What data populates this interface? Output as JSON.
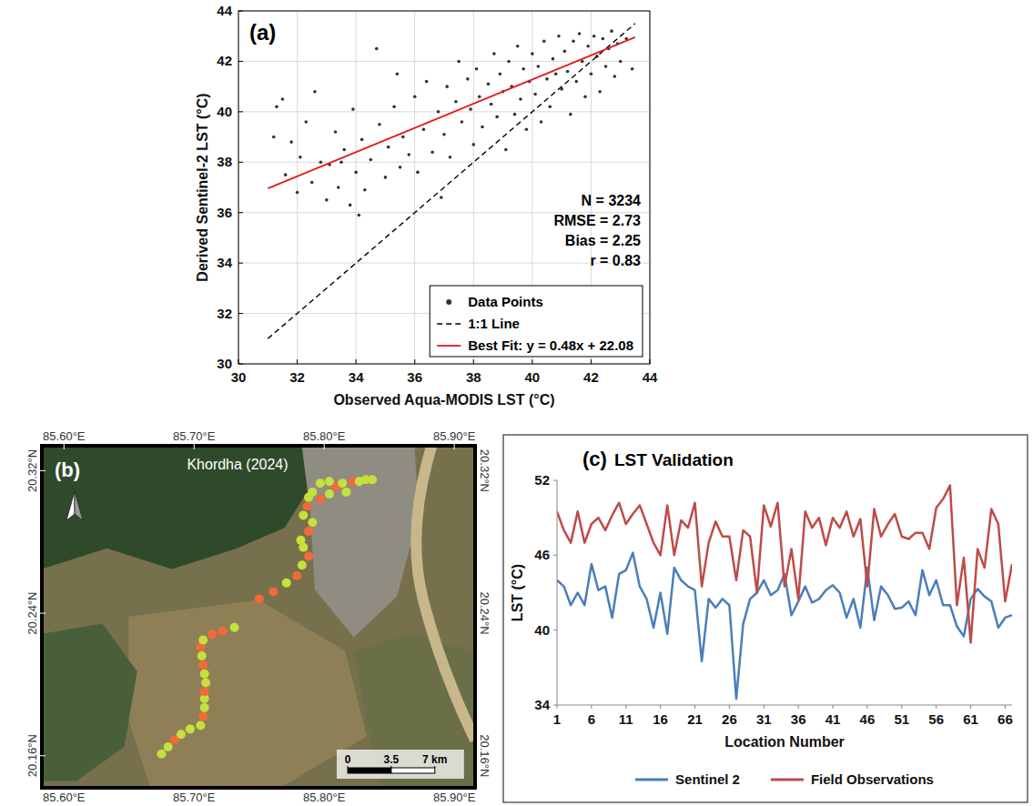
{
  "chart_data": [
    {
      "type": "scatter",
      "panel": "(a)",
      "x_label": "Observed Aqua-MODIS LST (°C)",
      "y_label": "Derived Sentinel-2 LST (°C)",
      "xlim": [
        30,
        44
      ],
      "ylim": [
        30,
        44
      ],
      "xticks": [
        30,
        32,
        34,
        36,
        38,
        40,
        42,
        44
      ],
      "yticks": [
        30,
        32,
        34,
        36,
        38,
        40,
        42,
        44
      ],
      "grid": true,
      "legend": "lower right",
      "annotations": [
        "N = 3234",
        "RMSE = 2.73",
        "Bias = 2.25",
        "r = 0.83"
      ],
      "series": [
        {
          "name": "Data Points",
          "type": "scatter",
          "marker": "circle",
          "color": "#333333",
          "x": [
            31.2,
            31.5,
            31.6,
            31.8,
            32.0,
            32.1,
            32.3,
            32.5,
            32.6,
            32.8,
            33.0,
            33.1,
            33.3,
            33.4,
            33.6,
            33.8,
            33.9,
            34.0,
            34.2,
            34.3,
            34.5,
            34.7,
            34.8,
            35.0,
            35.1,
            35.3,
            35.5,
            35.6,
            35.8,
            36.0,
            36.1,
            36.3,
            36.4,
            36.6,
            36.8,
            37.0,
            37.1,
            37.2,
            37.4,
            37.5,
            37.6,
            37.8,
            37.9,
            38.0,
            38.1,
            38.2,
            38.3,
            38.5,
            38.6,
            38.7,
            38.8,
            38.9,
            39.0,
            39.1,
            39.2,
            39.3,
            39.4,
            39.5,
            39.6,
            39.7,
            39.8,
            39.9,
            40.0,
            40.1,
            40.2,
            40.3,
            40.4,
            40.5,
            40.6,
            40.7,
            40.8,
            40.9,
            41.0,
            41.1,
            41.2,
            41.3,
            41.4,
            41.5,
            41.6,
            41.7,
            41.8,
            41.9,
            42.0,
            42.1,
            42.2,
            42.3,
            42.4,
            42.5,
            42.6,
            42.7,
            42.8,
            42.9,
            43.0,
            43.2,
            43.4,
            36.9,
            35.4,
            34.1,
            31.3,
            33.5
          ],
          "values": [
            39.0,
            40.5,
            37.5,
            38.8,
            36.8,
            38.2,
            39.6,
            37.2,
            40.8,
            38.0,
            36.5,
            37.9,
            39.2,
            37.0,
            38.5,
            36.3,
            40.1,
            37.6,
            38.9,
            36.9,
            38.1,
            42.5,
            39.5,
            37.4,
            38.6,
            40.2,
            37.8,
            39.0,
            38.3,
            40.6,
            37.6,
            39.3,
            41.2,
            38.4,
            40.0,
            39.1,
            41.0,
            38.2,
            40.4,
            42.0,
            39.6,
            41.3,
            40.1,
            38.7,
            41.7,
            40.6,
            39.4,
            41.1,
            40.3,
            42.3,
            39.8,
            41.5,
            40.8,
            38.5,
            42.0,
            41.0,
            39.9,
            42.6,
            40.5,
            41.7,
            39.3,
            41.2,
            42.3,
            40.7,
            41.8,
            39.6,
            42.8,
            41.3,
            40.2,
            42.1,
            41.5,
            43.0,
            40.9,
            42.4,
            41.6,
            39.9,
            42.8,
            41.2,
            43.1,
            42.0,
            40.6,
            42.6,
            41.5,
            43.0,
            42.2,
            40.8,
            42.9,
            41.8,
            42.5,
            43.2,
            41.4,
            42.7,
            42.0,
            42.9,
            41.7,
            36.6,
            41.5,
            35.9,
            40.2,
            38.0
          ]
        },
        {
          "name": "1:1 Line",
          "type": "line",
          "line_style": "dashed",
          "color": "#000000",
          "x": [
            31,
            43.5
          ],
          "values": [
            31,
            43.5
          ]
        },
        {
          "name": "Best Fit: y = 0.48x + 22.08",
          "type": "line",
          "line_style": "solid",
          "color": "#e41a1c",
          "x": [
            31,
            43.5
          ],
          "values": [
            36.96,
            42.96
          ]
        }
      ]
    },
    {
      "type": "map",
      "panel": "(b)",
      "title": "Khordha (2024)",
      "xlim": [
        85.583,
        85.916
      ],
      "ylim": [
        20.142,
        20.334
      ],
      "xticks": [
        {
          "value": 85.6,
          "label": "85.60°E"
        },
        {
          "value": 85.7,
          "label": "85.70°E"
        },
        {
          "value": 85.8,
          "label": "85.80°E"
        },
        {
          "value": 85.9,
          "label": "85.90°E"
        }
      ],
      "yticks": [
        {
          "value": 20.16,
          "label": "20.16°N"
        },
        {
          "value": 20.24,
          "label": "20.24°N"
        },
        {
          "value": 20.32,
          "label": "20.32°N"
        }
      ],
      "scale_bar": {
        "values": [
          0,
          3.5,
          7
        ],
        "labels": [
          "0",
          "3.5",
          "7 km"
        ]
      },
      "series": [
        {
          "type": "scatter",
          "marker": "circle",
          "x": [
            85.675,
            85.68,
            85.685,
            85.69,
            85.697,
            85.705,
            85.707,
            85.708,
            85.708,
            85.708,
            85.709,
            85.708,
            85.707,
            85.706,
            85.705,
            85.707,
            85.714,
            85.722,
            85.731,
            85.75,
            85.761,
            85.771,
            85.779,
            85.783,
            85.788,
            85.784,
            85.782,
            85.788,
            85.791,
            85.784,
            85.787,
            85.788,
            85.791,
            85.797,
            85.804,
            85.809,
            85.814,
            85.817,
            85.822,
            85.827,
            85.832,
            85.837,
            85.797,
            85.804
          ],
          "values": [
            20.161,
            20.165,
            20.169,
            20.172,
            20.175,
            20.177,
            20.182,
            20.187,
            20.192,
            20.196,
            20.201,
            20.206,
            20.211,
            20.216,
            20.221,
            20.225,
            20.228,
            20.23,
            20.232,
            20.248,
            20.252,
            20.257,
            20.261,
            20.267,
            20.272,
            20.277,
            20.281,
            20.286,
            20.291,
            20.295,
            20.3,
            20.305,
            20.308,
            20.304,
            20.307,
            20.311,
            20.313,
            20.308,
            20.314,
            20.314,
            20.315,
            20.315,
            20.313,
            20.314
          ],
          "colors": [
            "#c6e03c",
            "#c6e03c",
            "#f26a3b",
            "#c6e03c",
            "#c6e03c",
            "#c6e03c",
            "#f26a3b",
            "#c6e03c",
            "#c6e03c",
            "#f26a3b",
            "#c6e03c",
            "#c6e03c",
            "#f26a3b",
            "#c6e03c",
            "#f26a3b",
            "#c6e03c",
            "#f26a3b",
            "#f26a3b",
            "#c6e03c",
            "#f26a3b",
            "#f26a3b",
            "#c6e03c",
            "#f26a3b",
            "#c6e03c",
            "#f26a3b",
            "#c6e03c",
            "#c6e03c",
            "#f26a3b",
            "#c6e03c",
            "#c6e03c",
            "#f26a3b",
            "#c6e03c",
            "#c6e03c",
            "#f26a3b",
            "#c6e03c",
            "#f26a3b",
            "#c6e03c",
            "#c6e03c",
            "#f26a3b",
            "#c6e03c",
            "#c6e03c",
            "#c6e03c",
            "#c6e03c",
            "#c6e03c"
          ]
        }
      ]
    },
    {
      "type": "line",
      "panel": "(c)",
      "title": "LST Validation",
      "x_label": "Location Number",
      "y_label": "LST (°C)",
      "x": [
        1,
        2,
        3,
        4,
        5,
        6,
        7,
        8,
        9,
        10,
        11,
        12,
        13,
        14,
        15,
        16,
        17,
        18,
        19,
        20,
        21,
        22,
        23,
        24,
        25,
        26,
        27,
        28,
        29,
        30,
        31,
        32,
        33,
        34,
        35,
        36,
        37,
        38,
        39,
        40,
        41,
        42,
        43,
        44,
        45,
        46,
        47,
        48,
        49,
        50,
        51,
        52,
        53,
        54,
        55,
        56,
        57,
        58,
        59,
        60,
        61,
        62,
        63,
        64,
        65,
        66,
        67
      ],
      "xlim": [
        1,
        67
      ],
      "ylim": [
        34,
        52
      ],
      "xticks": [
        1,
        6,
        11,
        16,
        21,
        26,
        31,
        36,
        41,
        46,
        51,
        56,
        61,
        66
      ],
      "yticks": [
        34,
        40,
        46,
        52
      ],
      "legend": "bottom",
      "series": [
        {
          "name": "Sentinel 2",
          "color": "#4a7ebb",
          "values": [
            44,
            43.5,
            42,
            43,
            42,
            45.3,
            43.2,
            43.5,
            41,
            44.5,
            44.8,
            46.2,
            43.5,
            42.5,
            40.2,
            43,
            39.7,
            45,
            44,
            43.5,
            43.2,
            37.5,
            42.5,
            41.8,
            42.5,
            42,
            34.5,
            40.5,
            42.5,
            43,
            44,
            42.8,
            43.2,
            44.5,
            41.2,
            42.3,
            43.5,
            42.2,
            42.5,
            43.2,
            43.6,
            43,
            41,
            42.5,
            40.2,
            45,
            40.8,
            43.5,
            42.8,
            41.7,
            41.8,
            42.3,
            41.2,
            44.8,
            42.8,
            44,
            42,
            42,
            40.3,
            39.5,
            42.5,
            43.3,
            42.7,
            42.3,
            40.2,
            41,
            41.2
          ]
        },
        {
          "name": "Field Observations",
          "color": "#be4b48",
          "values": [
            49.5,
            48,
            47,
            49.5,
            47,
            48.5,
            49,
            48,
            49.2,
            50.2,
            48.5,
            49.3,
            50,
            48.5,
            47,
            46,
            50,
            46,
            48.8,
            48.2,
            50.2,
            43.5,
            47,
            48.7,
            47.5,
            47.5,
            44,
            48,
            47.5,
            43,
            50,
            48.3,
            50.2,
            43.5,
            46.5,
            42.5,
            49.5,
            48.2,
            49,
            46.8,
            49,
            48.2,
            49.5,
            47.5,
            48.9,
            43.5,
            49.7,
            47.5,
            48.5,
            49.3,
            47.5,
            47.3,
            47.8,
            47.8,
            46.5,
            49.8,
            50.5,
            51.6,
            42,
            45.8,
            39,
            46.5,
            45,
            49.7,
            48.5,
            42.3,
            45.3
          ]
        }
      ]
    }
  ]
}
